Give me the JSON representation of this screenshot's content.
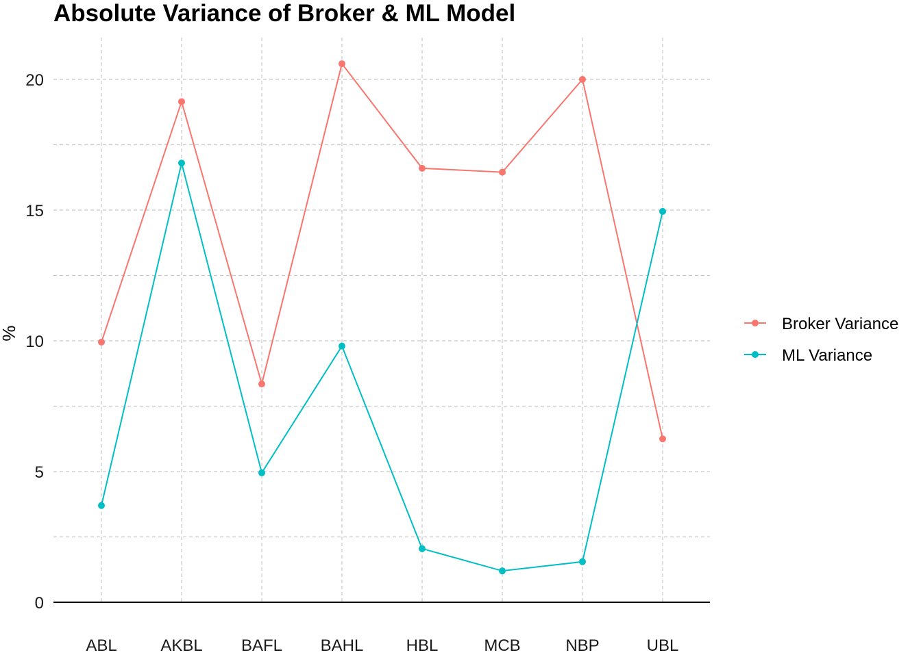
{
  "chart_data": {
    "type": "line",
    "title": "Absolute Variance of Broker & ML Model",
    "xlabel": "",
    "ylabel": "%",
    "categories": [
      "ABL",
      "AKBL",
      "BAFL",
      "BAHL",
      "HBL",
      "MCB",
      "NBP",
      "UBL"
    ],
    "ylim": [
      0,
      21
    ],
    "y_ticks": [
      "0",
      "5",
      "10",
      "15",
      "20"
    ],
    "grid": true,
    "legend_position": "right",
    "series": [
      {
        "name": "Broker Variance",
        "color": "#F8766D",
        "values": [
          9.95,
          19.15,
          8.35,
          20.6,
          16.6,
          16.45,
          20.0,
          6.25
        ]
      },
      {
        "name": "ML Variance",
        "color": "#00BFC4",
        "values": [
          3.7,
          16.8,
          4.95,
          9.8,
          2.05,
          1.2,
          1.55,
          14.95
        ]
      }
    ]
  }
}
